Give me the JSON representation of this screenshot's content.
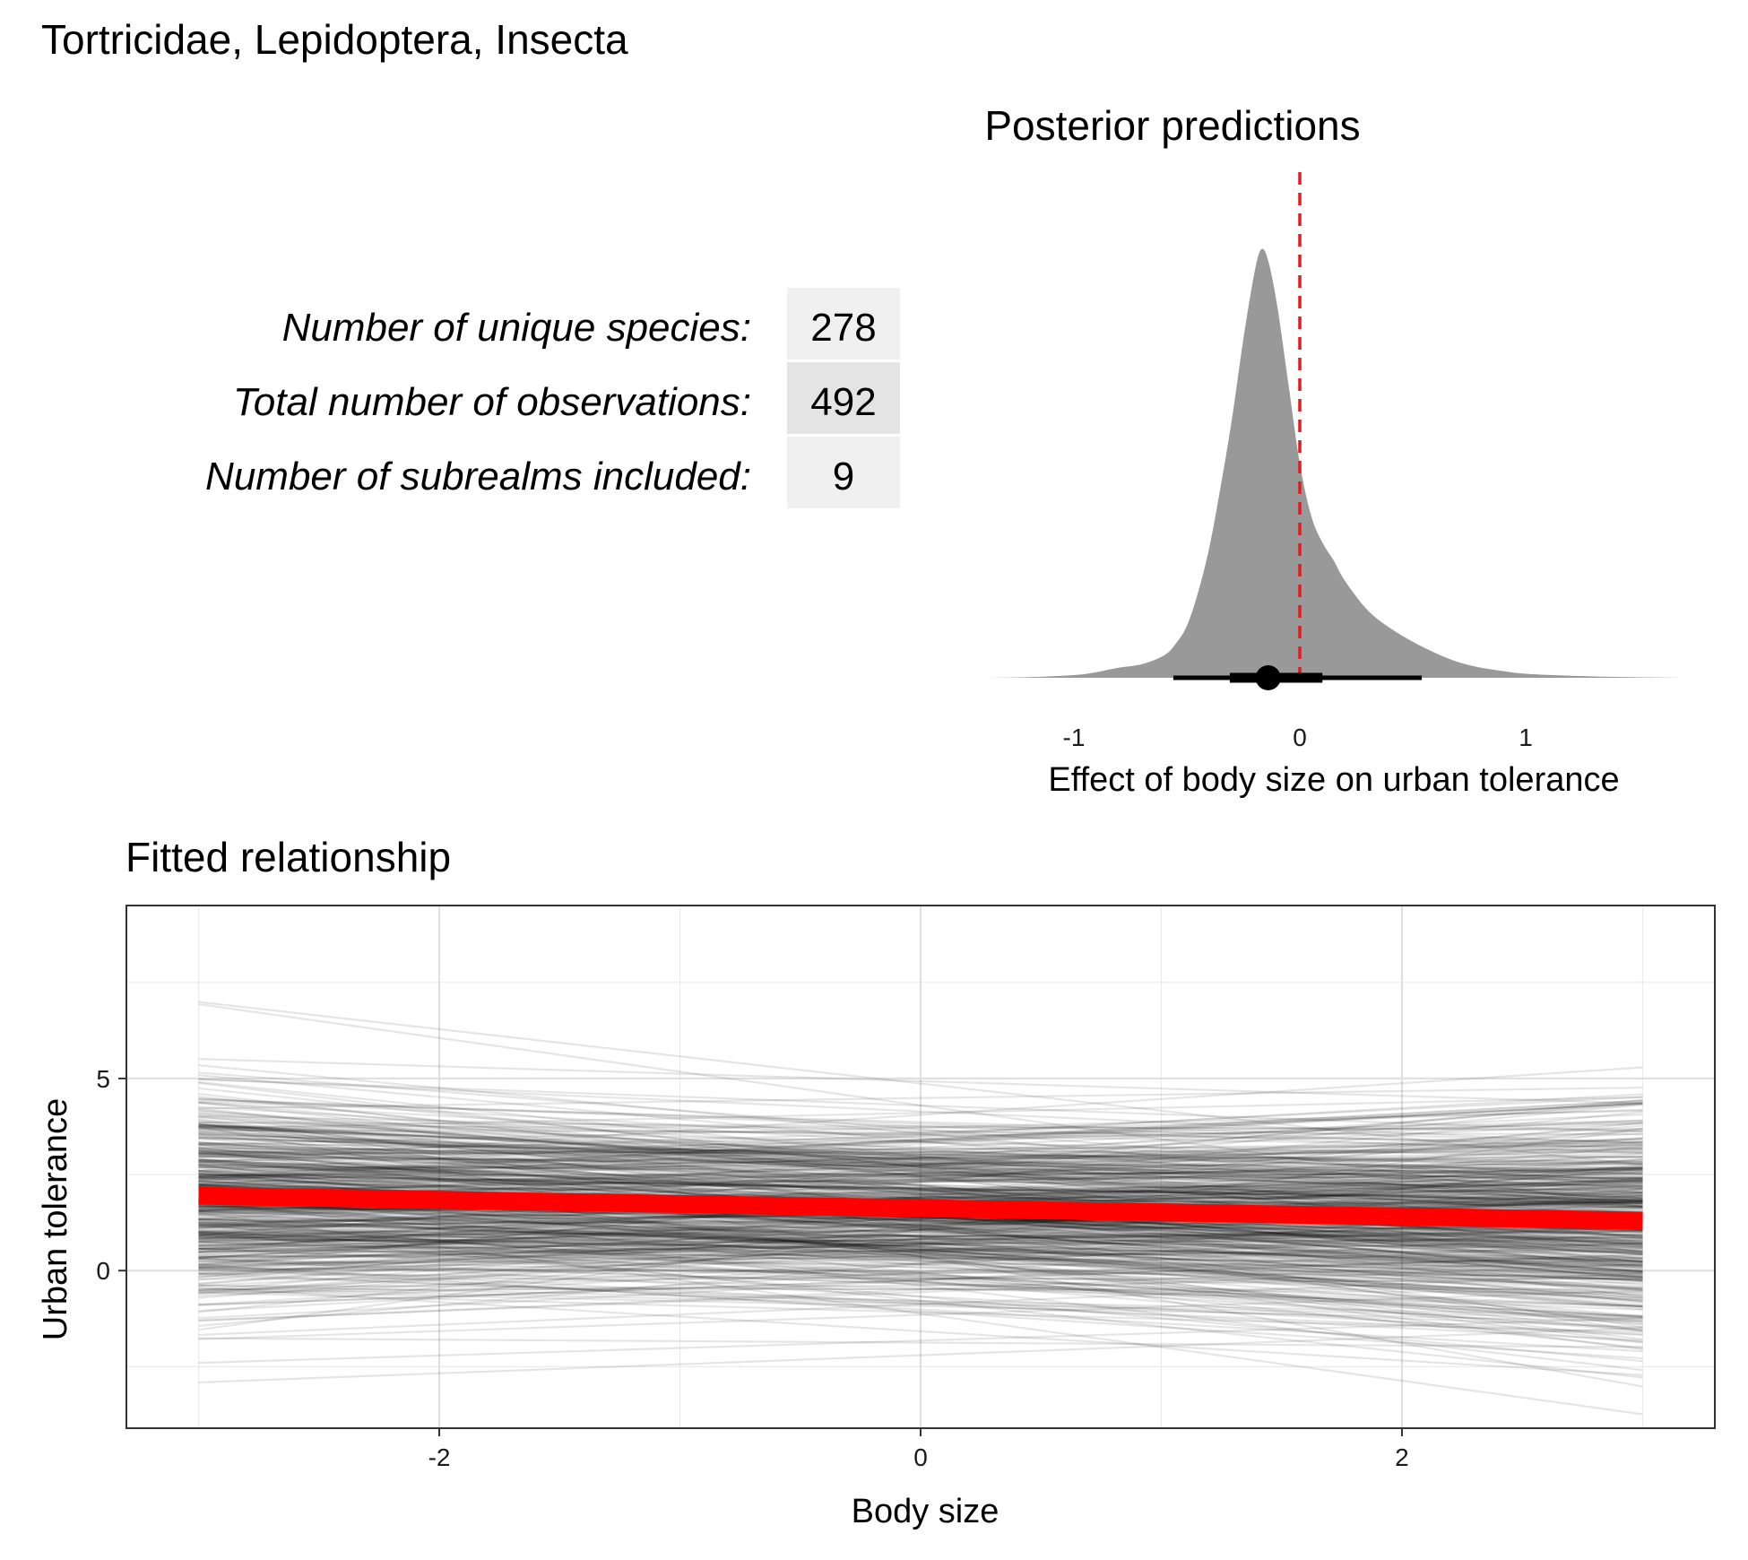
{
  "page_title": "Tortricidae, Lepidoptera, Insecta",
  "stats": [
    {
      "label": "Number of unique species:",
      "value": "278"
    },
    {
      "label": "Total number of observations:",
      "value": "492"
    },
    {
      "label": "Number of subrealms included:",
      "value": "9"
    }
  ],
  "colors": {
    "density_fill": "#999999",
    "zero_line": "#e41a1c",
    "fit_line": "#ff0000",
    "draw_line": "#000000",
    "stat_cell_light": "#f0f0f0",
    "stat_cell_dark": "#e4e4e4"
  },
  "chart_data": [
    {
      "type": "area",
      "title": "Posterior predictions",
      "xlabel": "Effect of body size on urban tolerance",
      "ylabel": "",
      "xlim": [
        -1.4,
        1.7
      ],
      "grid": false,
      "x_ticks": [
        "-1",
        "0",
        "1"
      ],
      "reference_line": {
        "x": 0,
        "style": "dashed",
        "color": "red"
      },
      "density": {
        "x": [
          -1.4,
          -1.2,
          -1.0,
          -0.9,
          -0.8,
          -0.7,
          -0.6,
          -0.55,
          -0.5,
          -0.45,
          -0.4,
          -0.35,
          -0.3,
          -0.25,
          -0.2,
          -0.17,
          -0.14,
          -0.1,
          -0.05,
          0.0,
          0.05,
          0.1,
          0.15,
          0.2,
          0.3,
          0.4,
          0.5,
          0.6,
          0.7,
          0.8,
          0.9,
          1.0,
          1.2,
          1.4,
          1.7
        ],
        "y": [
          0.0,
          0.003,
          0.012,
          0.025,
          0.045,
          0.06,
          0.1,
          0.15,
          0.23,
          0.38,
          0.58,
          0.85,
          1.15,
          1.5,
          1.8,
          1.9,
          1.85,
          1.65,
          1.3,
          0.95,
          0.72,
          0.6,
          0.52,
          0.43,
          0.3,
          0.22,
          0.16,
          0.11,
          0.07,
          0.045,
          0.03,
          0.018,
          0.009,
          0.004,
          0.0
        ]
      },
      "point_interval": {
        "point": -0.14,
        "inner": [
          -0.31,
          0.1
        ],
        "outer": [
          -0.56,
          0.54
        ]
      }
    },
    {
      "type": "line",
      "title": "Fitted relationship",
      "xlabel": "Body size",
      "ylabel": "Urban tolerance",
      "xlim": [
        -3.3,
        3.3
      ],
      "ylim": [
        -4.1,
        9.5
      ],
      "grid": true,
      "x_ticks": [
        "-2",
        "0",
        "2"
      ],
      "y_ticks": [
        "0",
        "5"
      ],
      "fit": {
        "x": [
          -3,
          3
        ],
        "y": [
          1.95,
          1.3
        ]
      },
      "draws": {
        "count": 500,
        "x": [
          -3,
          3
        ],
        "intercept_mean": 1.6,
        "intercept_sd": 1.2,
        "slope_mean": -0.11,
        "slope_sd": 0.3
      }
    }
  ]
}
